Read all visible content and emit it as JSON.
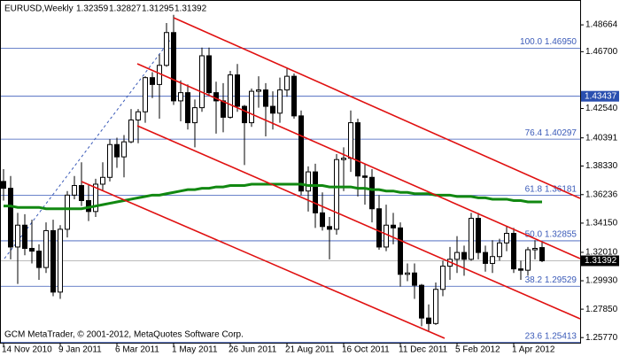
{
  "chart_data": {
    "type": "candlestick",
    "symbol": "EURUSD,Weekly",
    "copyright": "GCM MetaTrader, © 2001-2012, MetaQuotes Software Corp.",
    "categories": [
      "14 Nov 2010",
      null,
      null,
      null,
      null,
      null,
      null,
      null,
      "9 Jan 2011",
      null,
      null,
      null,
      null,
      null,
      null,
      null,
      "6 Mar 2011",
      null,
      null,
      null,
      null,
      null,
      null,
      null,
      "1 May 2011",
      null,
      null,
      null,
      null,
      null,
      null,
      null,
      "26 Jun 2011",
      null,
      null,
      null,
      null,
      null,
      null,
      null,
      "21 Aug 2011",
      null,
      null,
      null,
      null,
      null,
      null,
      null,
      "16 Oct 2011",
      null,
      null,
      null,
      null,
      null,
      null,
      null,
      "11 Dec 2011",
      null,
      null,
      null,
      null,
      null,
      null,
      null,
      "5 Feb 2012",
      null,
      null,
      null,
      null,
      null,
      null,
      null,
      "1 Apr 2012",
      null,
      null,
      null,
      null
    ],
    "open": [
      1.372,
      1.367,
      1.324,
      1.34,
      1.323,
      1.321,
      1.309,
      1.336,
      1.291,
      1.337,
      1.362,
      1.369,
      1.358,
      1.35,
      1.37,
      1.375,
      1.399,
      1.39,
      1.401,
      1.417,
      1.423,
      1.448,
      1.443,
      1.457,
      1.481,
      1.431,
      1.437,
      1.415,
      1.426,
      1.464,
      1.437,
      1.431,
      1.419,
      1.45,
      1.427,
      1.415,
      1.438,
      1.439,
      1.427,
      1.422,
      1.439,
      1.449,
      1.42,
      1.365,
      1.379,
      1.349,
      1.339,
      1.337,
      1.388,
      1.389,
      1.415,
      1.376,
      1.375,
      1.352,
      1.324,
      1.34,
      1.338,
      1.304,
      1.305,
      1.296,
      1.272,
      1.268,
      1.293,
      1.31,
      1.315,
      1.32,
      1.315,
      1.345,
      1.32,
      1.312,
      1.317,
      1.327,
      1.334,
      1.308,
      1.307,
      1.322,
      1.32359
    ],
    "high": [
      1.381,
      1.376,
      1.349,
      1.348,
      1.344,
      1.326,
      1.342,
      1.344,
      1.34,
      1.365,
      1.376,
      1.386,
      1.37,
      1.374,
      1.386,
      1.403,
      1.404,
      1.406,
      1.425,
      1.425,
      1.449,
      1.452,
      1.465,
      1.488,
      1.494,
      1.446,
      1.443,
      1.432,
      1.47,
      1.47,
      1.445,
      1.444,
      1.453,
      1.458,
      1.428,
      1.44,
      1.449,
      1.444,
      1.438,
      1.448,
      1.455,
      1.451,
      1.424,
      1.383,
      1.385,
      1.364,
      1.346,
      1.392,
      1.397,
      1.424,
      1.418,
      1.385,
      1.381,
      1.362,
      1.355,
      1.349,
      1.342,
      1.312,
      1.312,
      1.297,
      1.282,
      1.298,
      1.314,
      1.324,
      1.332,
      1.325,
      1.349,
      1.349,
      1.325,
      1.329,
      1.33,
      1.339,
      1.338,
      1.314,
      1.324,
      1.329,
      1.32827
    ],
    "low": [
      1.358,
      1.315,
      1.297,
      1.318,
      1.312,
      1.3,
      1.305,
      1.288,
      1.286,
      1.331,
      1.359,
      1.354,
      1.343,
      1.346,
      1.365,
      1.372,
      1.382,
      1.375,
      1.4,
      1.4,
      1.415,
      1.433,
      1.418,
      1.456,
      1.428,
      1.416,
      1.41,
      1.397,
      1.423,
      1.435,
      1.407,
      1.408,
      1.418,
      1.423,
      1.384,
      1.412,
      1.426,
      1.405,
      1.41,
      1.415,
      1.434,
      1.418,
      1.362,
      1.35,
      1.338,
      1.336,
      1.315,
      1.333,
      1.365,
      1.379,
      1.361,
      1.355,
      1.342,
      1.322,
      1.321,
      1.326,
      1.295,
      1.299,
      1.286,
      1.266,
      1.262,
      1.267,
      1.288,
      1.3,
      1.305,
      1.303,
      1.314,
      1.315,
      1.306,
      1.305,
      1.314,
      1.321,
      1.305,
      1.3,
      1.303,
      1.315,
      1.31295
    ],
    "close": [
      1.367,
      1.324,
      1.34,
      1.323,
      1.321,
      1.309,
      1.336,
      1.291,
      1.337,
      1.362,
      1.369,
      1.358,
      1.35,
      1.37,
      1.375,
      1.399,
      1.39,
      1.401,
      1.417,
      1.423,
      1.448,
      1.443,
      1.457,
      1.481,
      1.431,
      1.437,
      1.415,
      1.426,
      1.464,
      1.437,
      1.431,
      1.419,
      1.45,
      1.427,
      1.415,
      1.438,
      1.439,
      1.427,
      1.422,
      1.439,
      1.449,
      1.42,
      1.365,
      1.379,
      1.349,
      1.339,
      1.337,
      1.388,
      1.389,
      1.415,
      1.376,
      1.375,
      1.352,
      1.324,
      1.34,
      1.338,
      1.304,
      1.305,
      1.296,
      1.272,
      1.268,
      1.293,
      1.31,
      1.315,
      1.32,
      1.315,
      1.345,
      1.32,
      1.312,
      1.317,
      1.327,
      1.334,
      1.308,
      1.307,
      1.322,
      1.323,
      1.31392
    ],
    "moving_average": {
      "color": "#118811",
      "values": [
        1.354,
        1.354,
        1.353,
        1.353,
        1.353,
        1.353,
        1.352,
        1.352,
        1.352,
        1.352,
        1.352,
        1.352,
        1.353,
        1.354,
        1.355,
        1.356,
        1.357,
        1.358,
        1.359,
        1.36,
        1.361,
        1.362,
        1.362,
        1.363,
        1.364,
        1.365,
        1.366,
        1.366,
        1.367,
        1.367,
        1.368,
        1.368,
        1.369,
        1.369,
        1.369,
        1.37,
        1.37,
        1.37,
        1.37,
        1.37,
        1.37,
        1.37,
        1.37,
        1.369,
        1.369,
        1.369,
        1.368,
        1.368,
        1.368,
        1.368,
        1.367,
        1.367,
        1.366,
        1.366,
        1.365,
        1.365,
        1.364,
        1.364,
        1.363,
        1.363,
        1.363,
        1.362,
        1.362,
        1.362,
        1.361,
        1.361,
        1.361,
        1.36,
        1.36,
        1.359,
        1.359,
        1.359,
        1.358,
        1.358,
        1.357,
        1.357,
        1.357
      ]
    },
    "fibo_levels": [
      {
        "value": 1.4695,
        "label": "100.0 1.46950"
      },
      {
        "value": 1.40297,
        "label": "76.4 1.40297"
      },
      {
        "value": 1.36181,
        "label": "61.8 1.36181"
      },
      {
        "value": 1.32855,
        "label": "50.0 1.32855"
      },
      {
        "value": 1.29529,
        "label": "38.2 1.29529"
      },
      {
        "value": 1.25413,
        "label": "23.6 1.25413"
      }
    ],
    "horizontal_line": 1.43437,
    "ylim": [
      1.25394,
      1.50419
    ],
    "yticks": [
      1.48664,
      {
        "value": 1.467,
        "label": "1.46700"
      },
      {
        "value": 1.4254,
        "label": "1.42540"
      },
      1.40391,
      {
        "value": 1.3833,
        "label": "1.38330"
      },
      1.36236,
      {
        "value": 1.3415,
        "label": "1.34150"
      },
      {
        "value": 1.3201,
        "label": "1.32010"
      },
      {
        "value": 1.2993,
        "label": "1.29930"
      },
      {
        "value": 1.2785,
        "label": "1.27850"
      },
      {
        "value": 1.2577,
        "label": "1.25770"
      }
    ]
  }
}
